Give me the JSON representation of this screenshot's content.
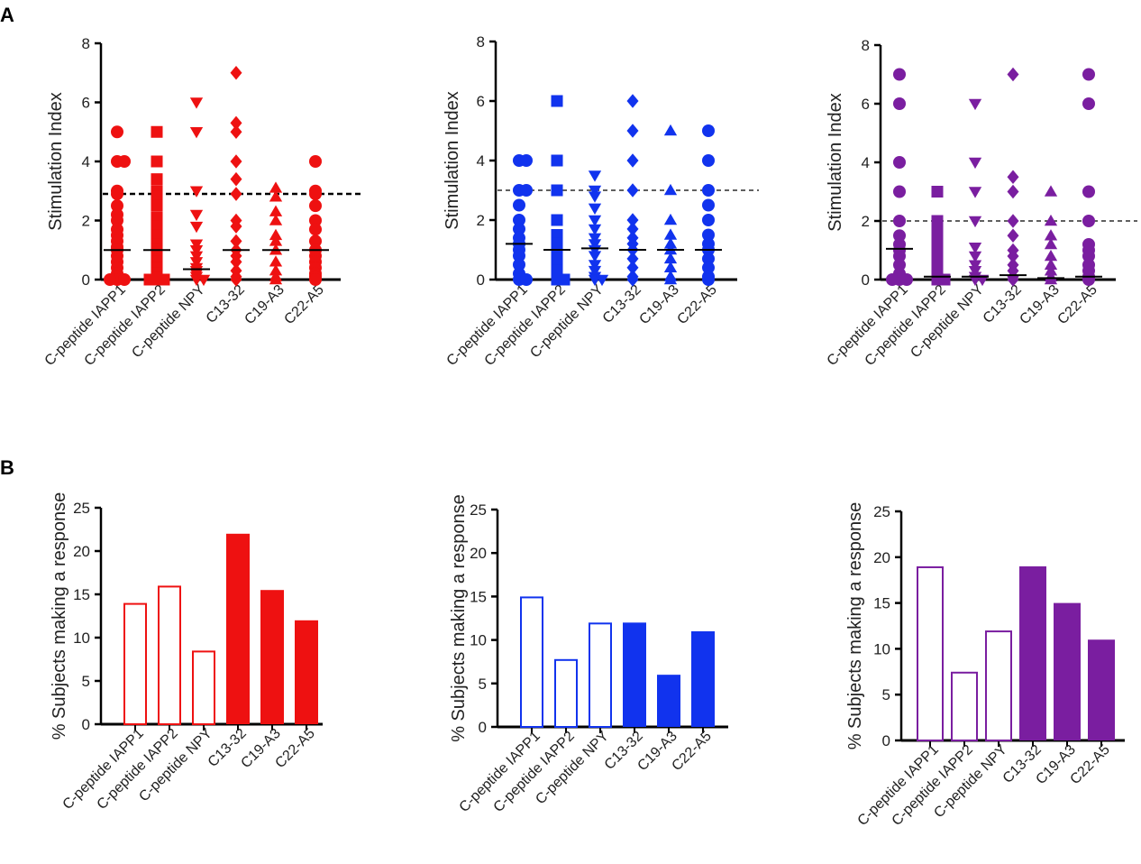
{
  "panels": {
    "A": "A",
    "B": "B"
  },
  "categories": [
    "C-peptide IAPP1",
    "C-peptide IAPP2",
    "C-peptide NPY",
    "C13-32",
    "C19-A3",
    "C22-A5"
  ],
  "chart_data": [
    {
      "type": "scatter",
      "panel": "A",
      "color": "#ee1111",
      "ylabel": "Stimulation  Index",
      "ylim": [
        0,
        8
      ],
      "yticks": [
        0,
        2,
        4,
        6,
        8
      ],
      "threshold": 2.9,
      "markers": [
        "circle",
        "square",
        "triangle-down",
        "diamond",
        "triangle-up",
        "circle"
      ],
      "medians": [
        1.0,
        1.0,
        0.35,
        1.0,
        1.0,
        1.0
      ],
      "points": [
        [
          5,
          4,
          4,
          3,
          2.9,
          2.5,
          2.2,
          2,
          1.7,
          1.5,
          1.3,
          1.1,
          1,
          0.8,
          0.6,
          0.4,
          0.2,
          0.1,
          0,
          0,
          0
        ],
        [
          5,
          4,
          3.4,
          3,
          2.8,
          2.5,
          2.1,
          1.8,
          1.5,
          1.2,
          1,
          0.8,
          0.6,
          0.4,
          0.2,
          0.1,
          0,
          0,
          0
        ],
        [
          6,
          5,
          3,
          2.2,
          1.8,
          1.2,
          1,
          0.8,
          0.6,
          0.4,
          0.3,
          0.2,
          0.1,
          0,
          0
        ],
        [
          7,
          5.3,
          5,
          4,
          3.4,
          2.9,
          2,
          1.8,
          1.3,
          1,
          0.8,
          0.6,
          0.3,
          0.1,
          0
        ],
        [
          3.1,
          2.8,
          2.3,
          2,
          1.5,
          1.3,
          1,
          0.6,
          0.3,
          0.1,
          0
        ],
        [
          4,
          3,
          2.9,
          2.5,
          2,
          1.7,
          1.3,
          1,
          0.8,
          0.6,
          0.4,
          0.2,
          0.1,
          0
        ]
      ]
    },
    {
      "type": "scatter",
      "panel": "A",
      "color": "#1133ee",
      "ylabel": "Stimulation  Index",
      "ylim": [
        0,
        8
      ],
      "yticks": [
        0,
        2,
        4,
        6,
        8
      ],
      "threshold": 3,
      "markers": [
        "circle",
        "square",
        "triangle-down",
        "diamond",
        "triangle-up",
        "circle"
      ],
      "medians": [
        1.2,
        1.0,
        1.05,
        1.0,
        1.0,
        1.0
      ],
      "points": [
        [
          4,
          4,
          3,
          3,
          2.5,
          2,
          1.7,
          1.4,
          1.2,
          1,
          0.8,
          0.5,
          0.2,
          0,
          0
        ],
        [
          6,
          4,
          3,
          2,
          1.5,
          1.2,
          1,
          0.8,
          0.5,
          0.3,
          0,
          0
        ],
        [
          3.5,
          3,
          2.8,
          2.4,
          2,
          1.7,
          1.4,
          1.2,
          1,
          0.8,
          0.5,
          0.3,
          0.1,
          0,
          0
        ],
        [
          6,
          5,
          4,
          3,
          2,
          1.7,
          1.4,
          1.2,
          1,
          0.7,
          0.4,
          0.1,
          0
        ],
        [
          5,
          3,
          2,
          1.5,
          1.2,
          1,
          0.7,
          0.4,
          0.1,
          0
        ],
        [
          5,
          4,
          3,
          2.5,
          2,
          1.5,
          1.2,
          1,
          0.7,
          0.4,
          0.1,
          0
        ]
      ]
    },
    {
      "type": "scatter",
      "panel": "A",
      "color": "#7a1ea0",
      "ylabel": "Stimulation  Index",
      "ylim": [
        0,
        8
      ],
      "yticks": [
        0,
        2,
        4,
        6,
        8
      ],
      "threshold": 2,
      "markers": [
        "circle",
        "square",
        "triangle-down",
        "diamond",
        "triangle-up",
        "circle"
      ],
      "medians": [
        1.05,
        0.1,
        0.1,
        0.15,
        0.05,
        0.1
      ],
      "points": [
        [
          7,
          6,
          4,
          3,
          2,
          1.5,
          1.2,
          1,
          0.8,
          0.5,
          0.2,
          0,
          0,
          0
        ],
        [
          3,
          2,
          1.8,
          1.5,
          1.2,
          1,
          0.8,
          0.5,
          0.3,
          0.1,
          0,
          0
        ],
        [
          6,
          4,
          3,
          2,
          1.1,
          0.8,
          0.5,
          0.3,
          0.1,
          0,
          0
        ],
        [
          7,
          3.5,
          3,
          2,
          1.5,
          1,
          0.8,
          0.5,
          0.3,
          0.1,
          0
        ],
        [
          3,
          2,
          1.5,
          1.2,
          0.8,
          0.5,
          0.3,
          0.1,
          0
        ],
        [
          7,
          6,
          3,
          2,
          1.2,
          1,
          0.8,
          0.5,
          0.3,
          0.1,
          0
        ]
      ]
    },
    {
      "type": "bar",
      "panel": "B",
      "color": "#ee1111",
      "ylabel": "% Subjects making a response",
      "ylim": [
        0,
        25
      ],
      "yticks": [
        0,
        5,
        10,
        15,
        20,
        25
      ],
      "values": [
        14,
        16,
        8.5,
        22,
        15.5,
        12
      ],
      "filled": [
        false,
        false,
        false,
        true,
        true,
        true
      ]
    },
    {
      "type": "bar",
      "panel": "B",
      "color": "#1133ee",
      "ylabel": "% Subjects making a response",
      "ylim": [
        0,
        25
      ],
      "yticks": [
        0,
        5,
        10,
        15,
        20,
        25
      ],
      "values": [
        15,
        7.8,
        12,
        12,
        6,
        11
      ],
      "filled": [
        false,
        false,
        false,
        true,
        true,
        true
      ]
    },
    {
      "type": "bar",
      "panel": "B",
      "color": "#7a1ea0",
      "ylabel": "% Subjects making a response",
      "ylim": [
        0,
        25
      ],
      "yticks": [
        0,
        5,
        10,
        15,
        20,
        25
      ],
      "values": [
        19,
        7.5,
        12,
        19,
        15,
        11
      ],
      "filled": [
        false,
        false,
        false,
        true,
        true,
        true
      ]
    }
  ]
}
